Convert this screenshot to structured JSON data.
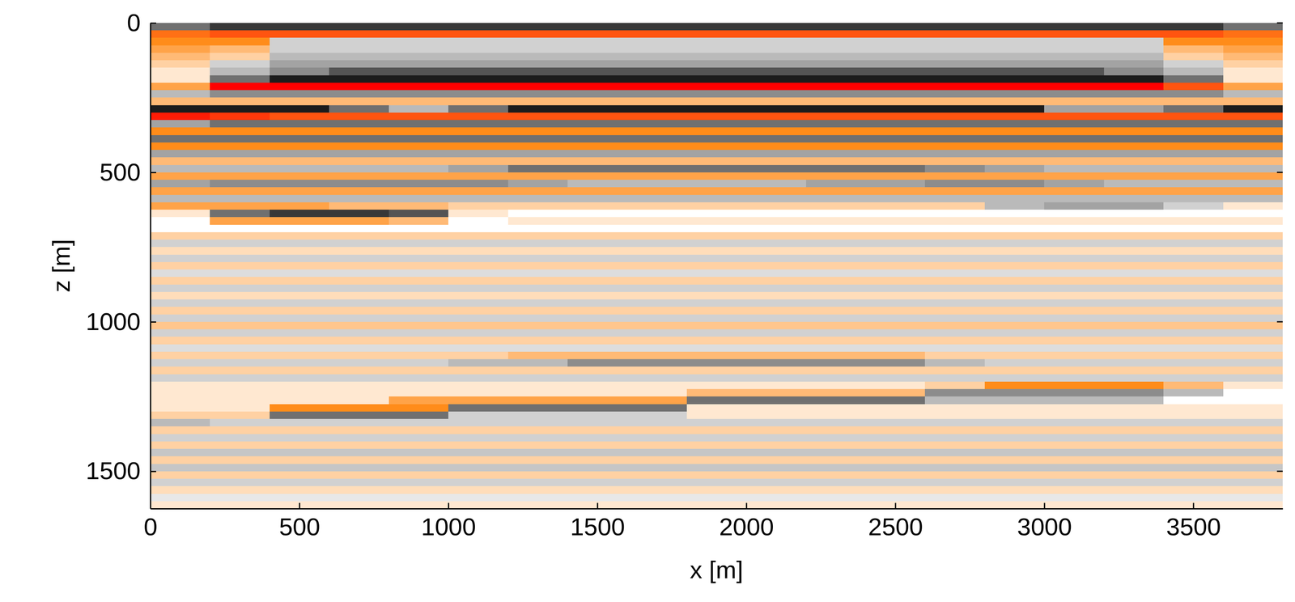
{
  "chart_data": {
    "type": "heatmap",
    "x_label": "x [m]",
    "y_label": "z [m]",
    "xlim": [
      0,
      3800
    ],
    "ylim": [
      0,
      1625
    ],
    "xticks": [
      0,
      500,
      1000,
      1500,
      2000,
      2500,
      3000,
      3500
    ],
    "yticks": [
      0,
      500,
      1000,
      1500
    ],
    "clim": [
      -1,
      1
    ],
    "colors": [
      "#000000",
      "#8c8c8c",
      "#ffffff",
      "#ff8c1a",
      "#ff0000"
    ],
    "x_bins": [
      0,
      200,
      400,
      600,
      800,
      1000,
      1200,
      1400,
      1600,
      1800,
      2000,
      2200,
      2400,
      2600,
      2800,
      3000,
      3200,
      3400,
      3600,
      3800
    ],
    "y_bins": [
      0,
      25,
      50,
      75,
      100,
      125,
      150,
      175,
      200,
      225,
      250,
      275,
      300,
      325,
      350,
      375,
      400,
      425,
      450,
      475,
      500,
      525,
      550,
      575,
      600,
      625,
      650,
      675,
      700,
      725,
      750,
      775,
      800,
      825,
      850,
      875,
      900,
      925,
      950,
      975,
      1000,
      1025,
      1050,
      1075,
      1100,
      1125,
      1150,
      1175,
      1200,
      1225,
      1250,
      1275,
      1300,
      1325,
      1350,
      1375,
      1400,
      1425,
      1450,
      1475,
      1500,
      1525,
      1550,
      1575,
      1600,
      1625
    ],
    "values": [
      [
        -0.6,
        -0.8,
        -0.8,
        -0.8,
        -0.8,
        -0.8,
        -0.8,
        -0.8,
        -0.8,
        -0.8,
        -0.8,
        -0.8,
        -0.8,
        -0.8,
        -0.8,
        -0.8,
        -0.8,
        -0.8,
        -0.6
      ],
      [
        0.6,
        0.7,
        0.7,
        0.7,
        0.7,
        0.7,
        0.7,
        0.7,
        0.7,
        0.7,
        0.7,
        0.7,
        0.7,
        0.7,
        0.7,
        0.7,
        0.7,
        0.7,
        0.6
      ],
      [
        0.5,
        0.5,
        -0.2,
        -0.2,
        -0.2,
        -0.2,
        -0.2,
        -0.2,
        -0.2,
        -0.2,
        -0.2,
        -0.2,
        -0.2,
        -0.2,
        -0.2,
        -0.2,
        -0.2,
        0.5,
        0.5
      ],
      [
        0.4,
        0.3,
        -0.2,
        -0.2,
        -0.2,
        -0.2,
        -0.2,
        -0.2,
        -0.2,
        -0.2,
        -0.2,
        -0.2,
        -0.2,
        -0.2,
        -0.2,
        -0.2,
        -0.2,
        0.3,
        0.4
      ],
      [
        0.3,
        0.2,
        -0.3,
        -0.3,
        -0.3,
        -0.3,
        -0.3,
        -0.3,
        -0.3,
        -0.3,
        -0.3,
        -0.3,
        -0.3,
        -0.3,
        -0.3,
        -0.3,
        -0.3,
        0.2,
        0.3
      ],
      [
        0.2,
        -0.2,
        -0.4,
        -0.4,
        -0.4,
        -0.4,
        -0.4,
        -0.4,
        -0.4,
        -0.4,
        -0.4,
        -0.4,
        -0.4,
        -0.4,
        -0.4,
        -0.4,
        -0.4,
        -0.2,
        0.2
      ],
      [
        0.1,
        -0.3,
        -0.5,
        -0.7,
        -0.7,
        -0.7,
        -0.7,
        -0.7,
        -0.7,
        -0.7,
        -0.7,
        -0.7,
        -0.7,
        -0.7,
        -0.7,
        -0.7,
        -0.5,
        -0.3,
        0.1
      ],
      [
        0.1,
        -0.6,
        -0.9,
        -0.9,
        -0.9,
        -0.9,
        -0.9,
        -0.9,
        -0.9,
        -0.9,
        -0.9,
        -0.9,
        -0.9,
        -0.9,
        -0.9,
        -0.9,
        -0.9,
        -0.6,
        0.1
      ],
      [
        0.4,
        1,
        1,
        1,
        1,
        1,
        1,
        1,
        1,
        1,
        1,
        1,
        1,
        1,
        1,
        1,
        1,
        0.7,
        0.4
      ],
      [
        -0.3,
        -0.5,
        -0.5,
        -0.5,
        -0.5,
        -0.5,
        -0.5,
        -0.5,
        -0.5,
        -0.5,
        -0.5,
        -0.5,
        -0.5,
        -0.5,
        -0.5,
        -0.5,
        -0.5,
        -0.5,
        -0.3
      ],
      [
        0.3,
        0.3,
        0.3,
        0.3,
        0.3,
        0.3,
        0.3,
        0.3,
        0.3,
        0.3,
        0.3,
        0.3,
        0.3,
        0.3,
        0.3,
        0.3,
        0.3,
        0.3,
        0.3
      ],
      [
        -0.9,
        -0.9,
        -0.9,
        -0.6,
        -0.3,
        -0.6,
        -0.9,
        -0.9,
        -0.9,
        -0.9,
        -0.9,
        -0.9,
        -0.9,
        -0.9,
        -0.9,
        -0.4,
        -0.4,
        -0.6,
        -0.9
      ],
      [
        0.9,
        0.8,
        0.7,
        0.7,
        0.7,
        0.7,
        0.7,
        0.7,
        0.7,
        0.7,
        0.7,
        0.7,
        0.7,
        0.7,
        0.7,
        0.7,
        0.7,
        0.7,
        0.7
      ],
      [
        -0.4,
        -0.6,
        -0.6,
        -0.6,
        -0.6,
        -0.6,
        -0.6,
        -0.6,
        -0.6,
        -0.6,
        -0.6,
        -0.6,
        -0.6,
        -0.6,
        -0.6,
        -0.6,
        -0.6,
        -0.6,
        -0.6
      ],
      [
        0.5,
        0.5,
        0.5,
        0.5,
        0.5,
        0.5,
        0.5,
        0.5,
        0.5,
        0.5,
        0.5,
        0.5,
        0.5,
        0.5,
        0.5,
        0.5,
        0.5,
        0.5,
        0.5
      ],
      [
        -0.6,
        -0.6,
        -0.6,
        -0.6,
        -0.6,
        -0.6,
        -0.6,
        -0.6,
        -0.6,
        -0.6,
        -0.6,
        -0.6,
        -0.6,
        -0.6,
        -0.6,
        -0.6,
        -0.6,
        -0.6,
        -0.6
      ],
      [
        0.5,
        0.5,
        0.5,
        0.5,
        0.5,
        0.5,
        0.5,
        0.5,
        0.5,
        0.5,
        0.5,
        0.5,
        0.5,
        0.5,
        0.5,
        0.5,
        0.5,
        0.5,
        0.5
      ],
      [
        -0.4,
        -0.4,
        -0.4,
        -0.4,
        -0.4,
        -0.4,
        -0.4,
        -0.4,
        -0.4,
        -0.4,
        -0.4,
        -0.4,
        -0.4,
        -0.4,
        -0.4,
        -0.4,
        -0.4,
        -0.4,
        -0.4
      ],
      [
        0.3,
        0.3,
        0.3,
        0.3,
        0.3,
        0.3,
        0.3,
        0.3,
        0.3,
        0.3,
        0.3,
        0.3,
        0.3,
        0.3,
        0.3,
        0.3,
        0.3,
        0.3,
        0.3
      ],
      [
        -0.3,
        -0.3,
        -0.3,
        -0.3,
        -0.3,
        -0.4,
        -0.6,
        -0.6,
        -0.6,
        -0.6,
        -0.6,
        -0.6,
        -0.6,
        -0.5,
        -0.4,
        -0.3,
        -0.3,
        -0.3,
        -0.3
      ],
      [
        0.4,
        0.4,
        0.4,
        0.4,
        0.4,
        0.4,
        0.4,
        0.4,
        0.4,
        0.4,
        0.4,
        0.4,
        0.4,
        0.4,
        0.4,
        0.4,
        0.4,
        0.4,
        0.4
      ],
      [
        -0.4,
        -0.5,
        -0.5,
        -0.5,
        -0.5,
        -0.5,
        -0.4,
        -0.3,
        -0.3,
        -0.3,
        -0.3,
        -0.4,
        -0.4,
        -0.5,
        -0.5,
        -0.4,
        -0.3,
        -0.3,
        -0.3
      ],
      [
        0.4,
        0.4,
        0.4,
        0.4,
        0.4,
        0.4,
        0.4,
        0.4,
        0.4,
        0.4,
        0.4,
        0.4,
        0.4,
        0.4,
        0.4,
        0.4,
        0.4,
        0.4,
        0.4
      ],
      [
        -0.3,
        -0.3,
        -0.3,
        -0.3,
        -0.3,
        -0.3,
        -0.3,
        -0.3,
        -0.3,
        -0.3,
        -0.3,
        -0.3,
        -0.3,
        -0.3,
        -0.3,
        -0.3,
        -0.3,
        -0.3,
        -0.3
      ],
      [
        0.4,
        0.4,
        0.4,
        0.3,
        0.3,
        0.2,
        0.2,
        0.2,
        0.2,
        0.2,
        0.2,
        0.2,
        0.2,
        0.2,
        -0.3,
        -0.4,
        -0.4,
        -0.2,
        0.1
      ],
      [
        0.1,
        -0.6,
        -0.8,
        -0.8,
        -0.7,
        0.1,
        0,
        0,
        0,
        0,
        0,
        0,
        0,
        0,
        0,
        0,
        0,
        0,
        0
      ],
      [
        0,
        0.4,
        0.4,
        0.4,
        0.3,
        0,
        0.1,
        0.1,
        0.1,
        0.1,
        0.1,
        0.1,
        0.1,
        0.1,
        0.1,
        0.1,
        0.1,
        0.1,
        0.1
      ],
      [
        0,
        0,
        0,
        0,
        0,
        0,
        0,
        0,
        0,
        0,
        0,
        0,
        0,
        0,
        0,
        0,
        0,
        0,
        0
      ],
      [
        0.2,
        0.2,
        0.2,
        0.2,
        0.2,
        0.2,
        0.2,
        0.2,
        0.2,
        0.2,
        0.2,
        0.2,
        0.2,
        0.2,
        0.2,
        0.2,
        0.2,
        0.2,
        0.2
      ],
      [
        -0.2,
        -0.2,
        -0.2,
        -0.2,
        -0.2,
        -0.2,
        -0.2,
        -0.2,
        -0.2,
        -0.2,
        -0.2,
        -0.2,
        -0.2,
        -0.2,
        -0.2,
        -0.2,
        -0.2,
        -0.2,
        -0.2
      ],
      [
        0.15,
        0.15,
        0.15,
        0.15,
        0.15,
        0.15,
        0.15,
        0.15,
        0.15,
        0.15,
        0.15,
        0.15,
        0.15,
        0.15,
        0.15,
        0.15,
        0.15,
        0.15,
        0.15
      ],
      [
        -0.2,
        -0.2,
        -0.2,
        -0.2,
        -0.2,
        -0.2,
        -0.2,
        -0.2,
        -0.2,
        -0.2,
        -0.2,
        -0.2,
        -0.2,
        -0.2,
        -0.2,
        -0.2,
        -0.2,
        -0.2,
        -0.2
      ],
      [
        0.2,
        0.2,
        0.2,
        0.2,
        0.2,
        0.2,
        0.2,
        0.2,
        0.2,
        0.2,
        0.2,
        0.2,
        0.2,
        0.2,
        0.2,
        0.2,
        0.2,
        0.2,
        0.2
      ],
      [
        -0.15,
        -0.15,
        -0.15,
        -0.15,
        -0.15,
        -0.15,
        -0.15,
        -0.15,
        -0.15,
        -0.15,
        -0.15,
        -0.15,
        -0.15,
        -0.15,
        -0.15,
        -0.15,
        -0.15,
        -0.15,
        -0.15
      ],
      [
        0.2,
        0.2,
        0.2,
        0.2,
        0.2,
        0.2,
        0.2,
        0.2,
        0.2,
        0.2,
        0.2,
        0.2,
        0.2,
        0.2,
        0.2,
        0.2,
        0.2,
        0.2,
        0.2
      ],
      [
        -0.2,
        -0.2,
        -0.2,
        -0.2,
        -0.2,
        -0.2,
        -0.2,
        -0.2,
        -0.2,
        -0.2,
        -0.2,
        -0.2,
        -0.2,
        -0.2,
        -0.2,
        -0.2,
        -0.2,
        -0.2,
        -0.2
      ],
      [
        0.15,
        0.15,
        0.15,
        0.15,
        0.15,
        0.15,
        0.15,
        0.15,
        0.15,
        0.15,
        0.15,
        0.15,
        0.15,
        0.15,
        0.15,
        0.15,
        0.15,
        0.15,
        0.15
      ],
      [
        -0.2,
        -0.2,
        -0.2,
        -0.2,
        -0.2,
        -0.2,
        -0.2,
        -0.2,
        -0.2,
        -0.2,
        -0.2,
        -0.2,
        -0.2,
        -0.2,
        -0.2,
        -0.2,
        -0.2,
        -0.2,
        -0.2
      ],
      [
        0.2,
        0.2,
        0.2,
        0.2,
        0.2,
        0.2,
        0.2,
        0.2,
        0.2,
        0.2,
        0.2,
        0.2,
        0.2,
        0.2,
        0.2,
        0.2,
        0.2,
        0.2,
        0.2
      ],
      [
        -0.2,
        -0.2,
        -0.2,
        -0.2,
        -0.2,
        -0.2,
        -0.2,
        -0.2,
        -0.2,
        -0.2,
        -0.2,
        -0.2,
        -0.2,
        -0.2,
        -0.2,
        -0.2,
        -0.2,
        -0.2,
        -0.2
      ],
      [
        0.25,
        0.25,
        0.25,
        0.25,
        0.25,
        0.25,
        0.25,
        0.25,
        0.25,
        0.25,
        0.25,
        0.25,
        0.25,
        0.25,
        0.25,
        0.25,
        0.25,
        0.25,
        0.25
      ],
      [
        -0.2,
        -0.2,
        -0.2,
        -0.2,
        -0.2,
        -0.2,
        -0.2,
        -0.2,
        -0.2,
        -0.2,
        -0.2,
        -0.2,
        -0.2,
        -0.2,
        -0.2,
        -0.2,
        -0.2,
        -0.2,
        -0.2
      ],
      [
        0.2,
        0.2,
        0.2,
        0.2,
        0.2,
        0.2,
        0.2,
        0.2,
        0.2,
        0.2,
        0.2,
        0.2,
        0.2,
        0.2,
        0.2,
        0.2,
        0.2,
        0.2,
        0.2
      ],
      [
        -0.15,
        -0.15,
        -0.15,
        -0.15,
        -0.15,
        -0.15,
        -0.15,
        -0.15,
        -0.15,
        -0.15,
        -0.15,
        -0.15,
        -0.15,
        -0.15,
        -0.15,
        -0.15,
        -0.15,
        -0.15,
        -0.15
      ],
      [
        0.2,
        0.2,
        0.2,
        0.2,
        0.2,
        0.2,
        0.3,
        0.3,
        0.3,
        0.3,
        0.3,
        0.3,
        0.3,
        0.2,
        0.2,
        0.2,
        0.2,
        0.2,
        0.2
      ],
      [
        -0.2,
        -0.2,
        -0.2,
        -0.2,
        -0.2,
        -0.3,
        -0.3,
        -0.5,
        -0.5,
        -0.5,
        -0.5,
        -0.5,
        -0.5,
        -0.3,
        -0.2,
        -0.2,
        -0.2,
        -0.2,
        -0.2
      ],
      [
        0.2,
        0.2,
        0.2,
        0.2,
        0.2,
        0.2,
        0.2,
        0.2,
        0.2,
        0.2,
        0.2,
        0.2,
        0.2,
        0.2,
        0.2,
        0.2,
        0.2,
        0.2,
        0.2
      ],
      [
        -0.2,
        -0.2,
        -0.2,
        -0.2,
        -0.2,
        -0.2,
        -0.2,
        -0.2,
        -0.2,
        -0.2,
        -0.2,
        -0.2,
        -0.2,
        -0.2,
        -0.2,
        -0.2,
        -0.2,
        -0.2,
        -0.2
      ],
      [
        0.1,
        0.1,
        0.1,
        0.1,
        0.1,
        0.1,
        0.1,
        0.1,
        0.1,
        0.1,
        0.1,
        0.1,
        0.1,
        0.2,
        0.5,
        0.5,
        0.5,
        0.3,
        0.1
      ],
      [
        0.1,
        0.1,
        0.1,
        0.1,
        0.1,
        0.1,
        0.1,
        0.1,
        0.1,
        0.3,
        0.3,
        0.3,
        0.3,
        -0.5,
        -0.5,
        -0.5,
        -0.5,
        -0.3,
        0
      ],
      [
        0.1,
        0.1,
        0.1,
        0.1,
        0.4,
        0.4,
        0.4,
        0.4,
        0.4,
        -0.6,
        -0.6,
        -0.6,
        -0.6,
        -0.3,
        -0.3,
        -0.3,
        -0.3,
        0,
        0
      ],
      [
        0.1,
        0.1,
        0.5,
        0.5,
        0.5,
        -0.6,
        -0.6,
        -0.6,
        -0.6,
        0.1,
        0.1,
        0.1,
        0.1,
        0.1,
        0.1,
        0.1,
        0.1,
        0.1,
        0.1
      ],
      [
        0.2,
        0.2,
        -0.6,
        -0.6,
        -0.6,
        -0.2,
        -0.2,
        -0.2,
        -0.2,
        0.1,
        0.1,
        0.1,
        0.1,
        0.1,
        0.1,
        0.1,
        0.1,
        0.1,
        0.1
      ],
      [
        -0.3,
        -0.2,
        -0.2,
        -0.2,
        -0.2,
        -0.2,
        -0.2,
        -0.2,
        -0.2,
        -0.2,
        -0.2,
        -0.2,
        -0.2,
        -0.2,
        -0.2,
        -0.2,
        -0.2,
        -0.2,
        -0.2
      ],
      [
        0.2,
        0.2,
        0.2,
        0.2,
        0.2,
        0.2,
        0.2,
        0.2,
        0.2,
        0.2,
        0.2,
        0.2,
        0.2,
        0.2,
        0.2,
        0.2,
        0.2,
        0.2,
        0.2
      ],
      [
        -0.2,
        -0.2,
        -0.2,
        -0.2,
        -0.2,
        -0.2,
        -0.2,
        -0.2,
        -0.2,
        -0.2,
        -0.2,
        -0.2,
        -0.2,
        -0.2,
        -0.2,
        -0.2,
        -0.2,
        -0.2,
        -0.2
      ],
      [
        0.2,
        0.2,
        0.2,
        0.2,
        0.2,
        0.2,
        0.2,
        0.2,
        0.2,
        0.2,
        0.2,
        0.2,
        0.2,
        0.2,
        0.2,
        0.2,
        0.2,
        0.2,
        0.2
      ],
      [
        -0.25,
        -0.25,
        -0.25,
        -0.25,
        -0.25,
        -0.25,
        -0.25,
        -0.25,
        -0.25,
        -0.25,
        -0.25,
        -0.25,
        -0.25,
        -0.25,
        -0.25,
        -0.25,
        -0.25,
        -0.25,
        -0.25
      ],
      [
        0.2,
        0.2,
        0.2,
        0.2,
        0.2,
        0.2,
        0.2,
        0.2,
        0.2,
        0.2,
        0.2,
        0.2,
        0.2,
        0.2,
        0.2,
        0.2,
        0.2,
        0.2,
        0.2
      ],
      [
        -0.25,
        -0.25,
        -0.25,
        -0.25,
        -0.25,
        -0.25,
        -0.25,
        -0.25,
        -0.25,
        -0.25,
        -0.25,
        -0.25,
        -0.25,
        -0.25,
        -0.25,
        -0.25,
        -0.25,
        -0.25,
        -0.25
      ],
      [
        0.2,
        0.2,
        0.2,
        0.2,
        0.2,
        0.2,
        0.2,
        0.2,
        0.2,
        0.2,
        0.2,
        0.2,
        0.2,
        0.2,
        0.2,
        0.2,
        0.2,
        0.2,
        0.2
      ],
      [
        -0.2,
        -0.2,
        -0.2,
        -0.2,
        -0.2,
        -0.2,
        -0.2,
        -0.2,
        -0.2,
        -0.2,
        -0.2,
        -0.2,
        -0.2,
        -0.2,
        -0.2,
        -0.2,
        -0.2,
        -0.2,
        -0.2
      ],
      [
        0.15,
        0.15,
        0.15,
        0.15,
        0.15,
        0.15,
        0.15,
        0.15,
        0.15,
        0.15,
        0.15,
        0.15,
        0.15,
        0.15,
        0.15,
        0.15,
        0.15,
        0.15,
        0.15
      ],
      [
        -0.1,
        -0.1,
        -0.1,
        -0.1,
        -0.1,
        -0.1,
        -0.1,
        -0.1,
        -0.1,
        -0.1,
        -0.1,
        -0.1,
        -0.1,
        -0.1,
        -0.1,
        -0.1,
        -0.1,
        -0.1,
        -0.1
      ],
      [
        0.1,
        0.1,
        0.1,
        0.1,
        0.1,
        0.1,
        0.1,
        0.1,
        0.1,
        0.1,
        0.1,
        0.1,
        0.1,
        0.1,
        0.1,
        0.1,
        0.1,
        0.1,
        0.1
      ]
    ]
  }
}
